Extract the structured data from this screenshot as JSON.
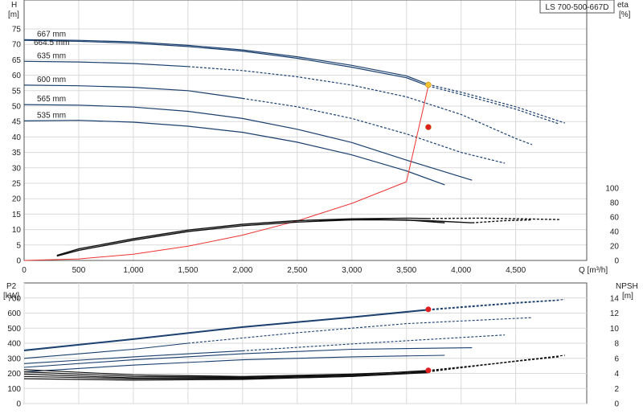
{
  "model_label": "LS 700-500-667D",
  "chart_data": [
    {
      "id": "upper",
      "type": "line",
      "xlabel": "Q [m³/h]",
      "x_ticks": [
        "0",
        "500",
        "1,000",
        "1,500",
        "2,000",
        "2,500",
        "3,000",
        "3,500",
        "4,000",
        "4,500"
      ],
      "xlim": [
        0,
        5150
      ],
      "left_axis": {
        "label": "H",
        "unit": "[m]",
        "ylim": [
          0,
          80
        ],
        "ticks": [
          "0",
          "5",
          "10",
          "15",
          "20",
          "25",
          "30",
          "35",
          "40",
          "45",
          "50",
          "55",
          "60",
          "65",
          "70",
          "75"
        ]
      },
      "right_axis": {
        "label": "eta",
        "unit": "[%]",
        "ylim": [
          0,
          150
        ],
        "ticks": [
          "0",
          "20",
          "40",
          "60",
          "80",
          "100"
        ]
      },
      "grid": true,
      "head_curves": [
        {
          "name": "667 mm",
          "color": "#1a3f6e",
          "solid": [
            [
              0,
              71.5
            ],
            [
              500,
              71.3
            ],
            [
              1000,
              70.8
            ],
            [
              1500,
              69.7
            ],
            [
              2000,
              68.2
            ],
            [
              2500,
              66.0
            ],
            [
              3000,
              63.2
            ],
            [
              3500,
              59.8
            ],
            [
              3700,
              57.0
            ]
          ],
          "dashed": [
            [
              3700,
              57.0
            ],
            [
              4000,
              54.5
            ],
            [
              4500,
              49.8
            ],
            [
              4950,
              44.5
            ]
          ]
        },
        {
          "name": "664.5 mm",
          "color": "#1a3f6e",
          "solid": [
            [
              0,
              71.3
            ],
            [
              500,
              71.0
            ],
            [
              1000,
              70.4
            ],
            [
              1500,
              69.3
            ],
            [
              2000,
              67.8
            ],
            [
              2500,
              65.5
            ],
            [
              3000,
              62.6
            ],
            [
              3500,
              59.2
            ],
            [
              3700,
              56.5
            ]
          ],
          "dashed": [
            [
              3700,
              56.5
            ],
            [
              4000,
              53.8
            ],
            [
              4500,
              49.0
            ],
            [
              4900,
              44.2
            ]
          ]
        },
        {
          "name": "635 mm",
          "color": "#1a3f6e",
          "solid": [
            [
              0,
              64.5
            ],
            [
              500,
              64.3
            ],
            [
              1000,
              63.8
            ],
            [
              1500,
              62.8
            ]
          ],
          "dashed": [
            [
              1500,
              62.8
            ],
            [
              2000,
              61.5
            ],
            [
              2500,
              59.5
            ],
            [
              3000,
              56.8
            ],
            [
              3500,
              53.0
            ],
            [
              4000,
              47.3
            ],
            [
              4500,
              39.5
            ],
            [
              4650,
              37.5
            ]
          ]
        },
        {
          "name": "600 mm",
          "color": "#1a3f6e",
          "solid": [
            [
              0,
              56.8
            ],
            [
              500,
              56.6
            ],
            [
              1000,
              56.1
            ],
            [
              1500,
              55.0
            ],
            [
              2000,
              52.5
            ]
          ],
          "dashed": [
            [
              2000,
              52.5
            ],
            [
              2500,
              49.8
            ],
            [
              3000,
              46.0
            ],
            [
              3500,
              41.0
            ],
            [
              4000,
              35.0
            ],
            [
              4400,
              31.5
            ]
          ]
        },
        {
          "name": "565 mm",
          "color": "#1a3f6e",
          "solid": [
            [
              0,
              50.5
            ],
            [
              500,
              50.3
            ],
            [
              1000,
              49.7
            ],
            [
              1500,
              48.3
            ],
            [
              2000,
              46.0
            ],
            [
              2500,
              42.5
            ],
            [
              3000,
              38.2
            ],
            [
              3500,
              32.5
            ],
            [
              4100,
              26.0
            ]
          ],
          "dashed": []
        },
        {
          "name": "535 mm",
          "color": "#1a3f6e",
          "solid": [
            [
              0,
              45.2
            ],
            [
              500,
              45.4
            ],
            [
              1000,
              44.8
            ],
            [
              1500,
              43.5
            ],
            [
              2000,
              41.5
            ],
            [
              2500,
              38.3
            ],
            [
              3000,
              34.2
            ],
            [
              3500,
              29.0
            ],
            [
              3850,
              24.5
            ]
          ],
          "dashed": []
        }
      ],
      "system_curve": {
        "color": "#ee3333",
        "points": [
          [
            0,
            0
          ],
          [
            500,
            0.5
          ],
          [
            1000,
            2.0
          ],
          [
            1500,
            4.6
          ],
          [
            2000,
            8.2
          ],
          [
            2500,
            12.8
          ],
          [
            3000,
            18.5
          ],
          [
            3500,
            25.5
          ],
          [
            3700,
            56.5
          ]
        ]
      },
      "eta_curves": [
        {
          "solid": [
            [
              300,
              7
            ],
            [
              500,
              16
            ],
            [
              1000,
              30
            ],
            [
              1500,
              42
            ],
            [
              2000,
              50
            ],
            [
              2500,
              55
            ],
            [
              3000,
              57.6
            ],
            [
              3500,
              58.5
            ],
            [
              3700,
              58.0
            ]
          ],
          "dashed": [
            [
              3700,
              58.0
            ],
            [
              4200,
              58.5
            ],
            [
              4900,
              56.5
            ]
          ]
        },
        {
          "solid": [
            [
              300,
              6
            ],
            [
              500,
              14
            ],
            [
              1000,
              28
            ],
            [
              1500,
              40
            ],
            [
              2000,
              48
            ],
            [
              2500,
              53
            ],
            [
              3000,
              56
            ],
            [
              3500,
              56
            ],
            [
              3850,
              52
            ]
          ],
          "dashed": []
        },
        {
          "solid": [
            [
              2700,
              55.5
            ],
            [
              3200,
              56.5
            ],
            [
              3700,
              55
            ],
            [
              4100,
              52
            ]
          ],
          "dashed": [
            [
              4100,
              52
            ],
            [
              4400,
              55
            ],
            [
              4650,
              56
            ]
          ]
        }
      ],
      "duty_points": [
        {
          "q": 3700,
          "h": 56.9,
          "color": "#f4c430"
        },
        {
          "q": 3700,
          "h": 43.2,
          "color": "#e02020"
        }
      ]
    },
    {
      "id": "lower",
      "type": "line",
      "xlim": [
        0,
        5150
      ],
      "left_axis": {
        "label": "P2",
        "unit": "[kW]",
        "ylim": [
          0,
          800
        ],
        "ticks": [
          "0",
          "100",
          "200",
          "300",
          "400",
          "500",
          "600",
          "700"
        ]
      },
      "right_axis": {
        "label": "NPSH",
        "unit": "[m]",
        "ylim": [
          0,
          16
        ],
        "ticks": [
          "0",
          "2",
          "4",
          "6",
          "8",
          "10",
          "12",
          "14"
        ]
      },
      "grid": true,
      "power_curves": [
        {
          "solid": [
            [
              0,
              355
            ],
            [
              1000,
              430
            ],
            [
              2000,
              510
            ],
            [
              3000,
              575
            ],
            [
              3700,
              625
            ]
          ],
          "dashed": [
            [
              3700,
              625
            ],
            [
              4500,
              670
            ],
            [
              4950,
              690
            ]
          ]
        },
        {
          "solid": [
            [
              0,
              350
            ],
            [
              1000,
              425
            ],
            [
              2000,
              505
            ],
            [
              3000,
              570
            ],
            [
              3700,
              620
            ]
          ],
          "dashed": [
            [
              3700,
              620
            ],
            [
              4500,
              665
            ],
            [
              4900,
              685
            ]
          ]
        },
        {
          "solid": [
            [
              0,
              300
            ],
            [
              1000,
              360
            ],
            [
              1500,
              400
            ]
          ],
          "dashed": [
            [
              1500,
              400
            ],
            [
              2500,
              470
            ],
            [
              3500,
              530
            ],
            [
              4650,
              570
            ]
          ]
        },
        {
          "solid": [
            [
              0,
              265
            ],
            [
              1000,
              310
            ],
            [
              2000,
              350
            ]
          ],
          "dashed": [
            [
              2000,
              350
            ],
            [
              3000,
              395
            ],
            [
              4400,
              455
            ]
          ]
        },
        {
          "solid": [
            [
              0,
              240
            ],
            [
              1000,
              290
            ],
            [
              2000,
              330
            ],
            [
              3000,
              360
            ],
            [
              4100,
              370
            ]
          ],
          "dashed": []
        },
        {
          "solid": [
            [
              0,
              210
            ],
            [
              1000,
              255
            ],
            [
              2000,
              290
            ],
            [
              3000,
              310
            ],
            [
              3850,
              320
            ]
          ],
          "dashed": []
        }
      ],
      "npsh_curves": [
        {
          "solid": [
            [
              0,
              4.2
            ],
            [
              1000,
              3.6
            ],
            [
              2000,
              3.5
            ],
            [
              3000,
              3.8
            ],
            [
              3700,
              4.4
            ]
          ],
          "dashed": [
            [
              3700,
              4.4
            ],
            [
              4300,
              5.3
            ],
            [
              4950,
              6.4
            ]
          ]
        },
        {
          "solid": [
            [
              0,
              4.5
            ],
            [
              1000,
              3.8
            ],
            [
              2000,
              3.6
            ],
            [
              3000,
              3.9
            ],
            [
              3700,
              4.3
            ]
          ],
          "dashed": [
            [
              3700,
              4.3
            ],
            [
              4500,
              5.6
            ],
            [
              4900,
              6.2
            ]
          ]
        },
        {
          "solid": [
            [
              0,
              3.9
            ],
            [
              1000,
              3.4
            ],
            [
              2000,
              3.4
            ],
            [
              3000,
              3.7
            ],
            [
              3700,
              4.2
            ]
          ],
          "dashed": [
            [
              3700,
              4.2
            ],
            [
              4650,
              5.9
            ]
          ]
        },
        {
          "solid": [
            [
              0,
              3.6
            ],
            [
              1000,
              3.3
            ],
            [
              2000,
              3.3
            ],
            [
              3000,
              3.6
            ],
            [
              3700,
              4.1
            ]
          ],
          "dashed": []
        },
        {
          "solid": [
            [
              0,
              3.3
            ],
            [
              1000,
              3.1
            ],
            [
              2000,
              3.2
            ],
            [
              3000,
              3.6
            ],
            [
              3700,
              4.2
            ]
          ],
          "dashed": []
        }
      ],
      "duty_points": [
        {
          "q": 3700,
          "p2": 625,
          "color": "#e02020"
        },
        {
          "q": 3700,
          "p2": 220,
          "color": "#e02020"
        }
      ]
    }
  ]
}
